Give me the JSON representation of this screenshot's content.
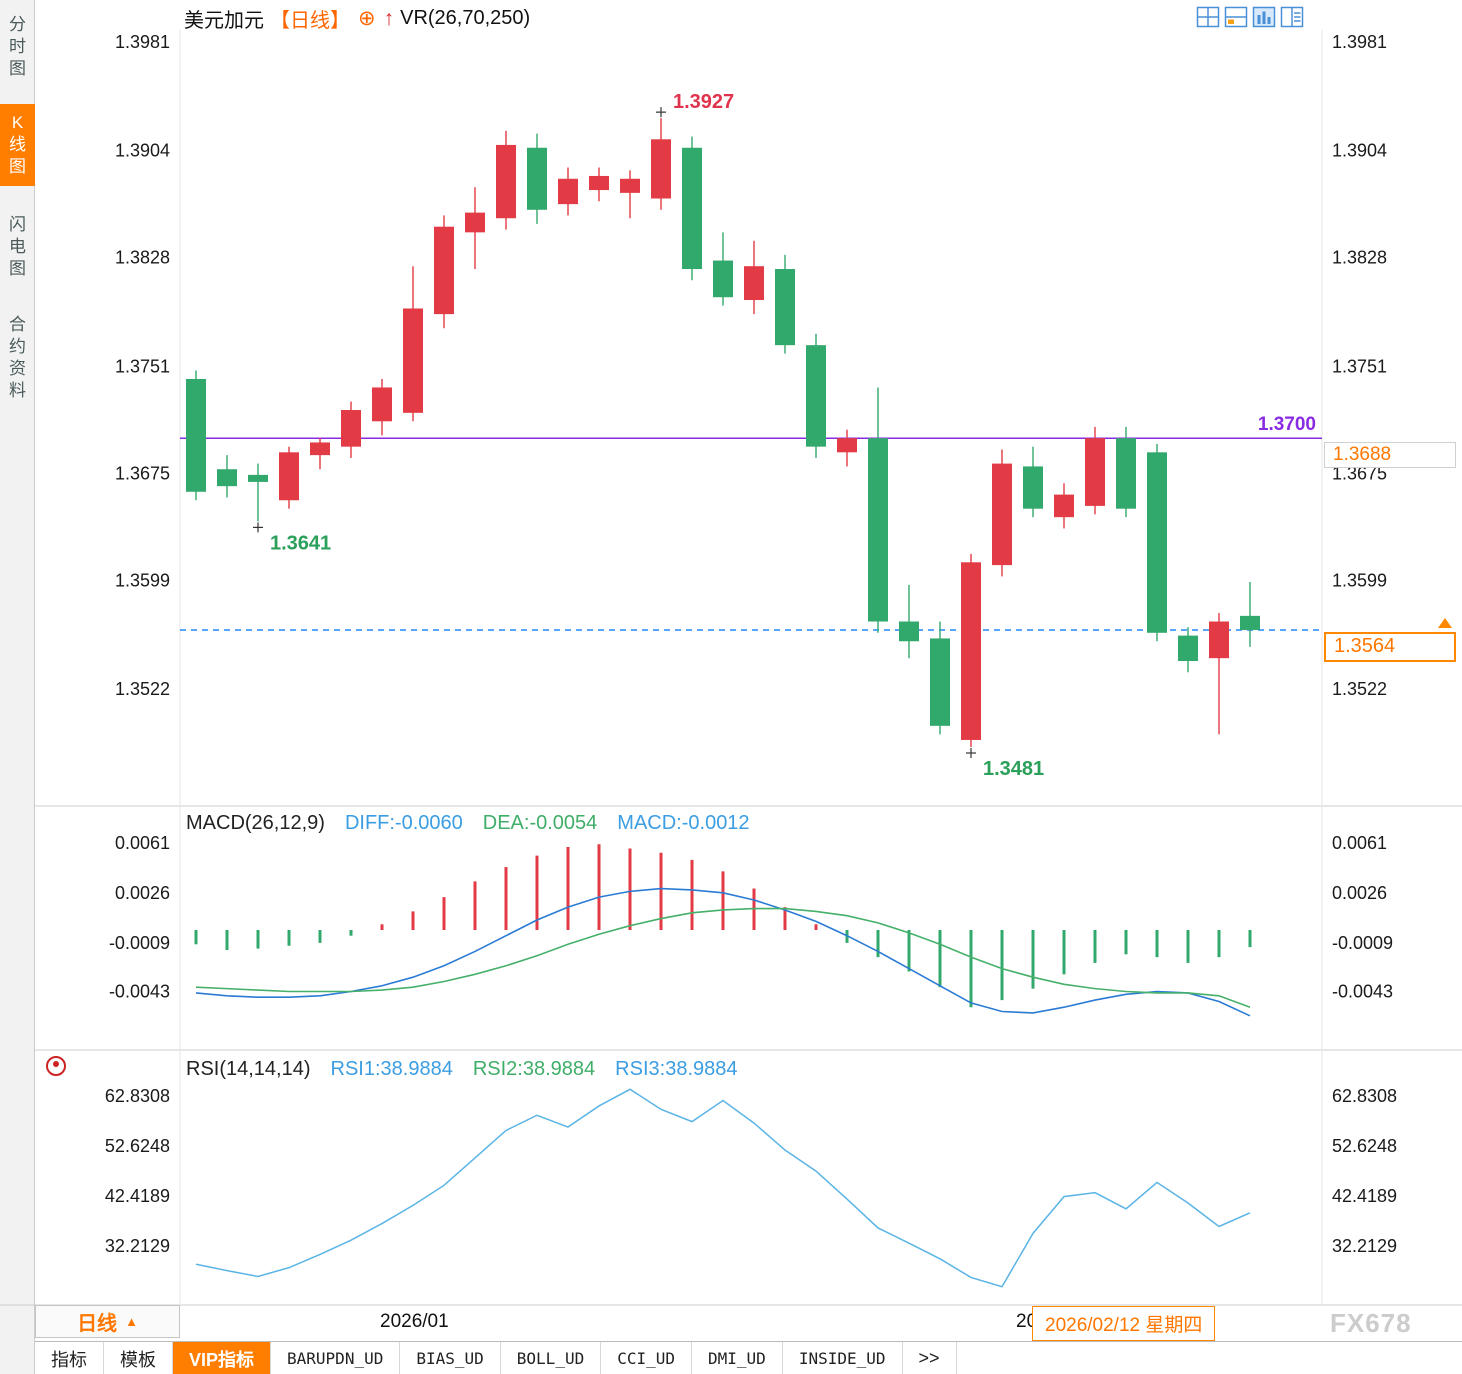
{
  "app": {
    "watermark": "FX678"
  },
  "colors": {
    "up": "#e23b45",
    "down": "#32a96c",
    "level_line": "#8a2be2",
    "current_line": "#2288ff",
    "accent": "#ff7e00",
    "diff_line": "#2b7bd4",
    "dea_line": "#46b06a",
    "rsi_line": "#5ab4e5",
    "tick_text": "#1a1a1a",
    "annotation_high": "#e0334e",
    "annotation_low": "#2aa05a"
  },
  "sidebar": {
    "items": [
      {
        "label": "分时图",
        "active": false
      },
      {
        "label": "K线图",
        "active": true
      },
      {
        "label": "闪电图",
        "active": false
      },
      {
        "label": "合约资料",
        "active": false
      }
    ]
  },
  "header": {
    "symbol": "美元加元",
    "period": "【日线】",
    "plus_icon": "⊕",
    "arrow_icon": "↑",
    "indicator": "VR(26,70,250)"
  },
  "price_tags": {
    "level": "1.3700",
    "right_mid": "1.3688",
    "current": "1.3564"
  },
  "macd_header": {
    "name": "MACD(26,12,9)",
    "diff": "DIFF:-0.0060",
    "dea": "DEA:-0.0054",
    "macd": "MACD:-0.0012"
  },
  "rsi_header": {
    "name": "RSI(14,14,14)",
    "rsi1": "RSI1:38.9884",
    "rsi2": "RSI2:38.9884",
    "rsi3": "RSI3:38.9884"
  },
  "bottom_axis": {
    "period": "日线",
    "arrow": "▲",
    "month": "2026/01",
    "partial": "20",
    "date": "2026/02/12 星期四"
  },
  "bottom_tabs": {
    "items": [
      {
        "label": "指标",
        "active": false
      },
      {
        "label": "模板",
        "active": false
      },
      {
        "label": "VIP指标",
        "active": true
      },
      {
        "label": "BARUPDN_UD",
        "active": false
      },
      {
        "label": "BIAS_UD",
        "active": false
      },
      {
        "label": "BOLL_UD",
        "active": false
      },
      {
        "label": "CCI_UD",
        "active": false
      },
      {
        "label": "DMI_UD",
        "active": false
      },
      {
        "label": "INSIDE_UD",
        "active": false
      },
      {
        "label": ">>",
        "active": false
      }
    ]
  },
  "chart_data": [
    {
      "type": "candlestick",
      "title": "美元加元 日线",
      "y_ticks": [
        "1.3981",
        "1.3904",
        "1.3828",
        "1.3751",
        "1.3675",
        "1.3599",
        "1.3522"
      ],
      "level_line": 1.37,
      "current_price": 1.3564,
      "annotations": [
        {
          "text": "1.3927",
          "index": 15,
          "value": 1.3927,
          "pos": "high"
        },
        {
          "text": "1.3641",
          "index": 2,
          "value": 1.3641,
          "pos": "low"
        },
        {
          "text": "1.3481",
          "index": 25,
          "value": 1.3481,
          "pos": "low"
        }
      ],
      "candles": [
        [
          1.3742,
          1.3748,
          1.3656,
          1.3662
        ],
        [
          1.3678,
          1.3688,
          1.3658,
          1.3666
        ],
        [
          1.3674,
          1.3682,
          1.3641,
          1.3669
        ],
        [
          1.3656,
          1.3694,
          1.365,
          1.369
        ],
        [
          1.3688,
          1.37,
          1.3678,
          1.3697
        ],
        [
          1.3694,
          1.3726,
          1.3686,
          1.372
        ],
        [
          1.3712,
          1.3742,
          1.3702,
          1.3736
        ],
        [
          1.3718,
          1.3822,
          1.3712,
          1.3792
        ],
        [
          1.3788,
          1.3858,
          1.3778,
          1.385
        ],
        [
          1.3846,
          1.3878,
          1.382,
          1.386
        ],
        [
          1.3856,
          1.3918,
          1.3848,
          1.3908
        ],
        [
          1.3906,
          1.3916,
          1.3852,
          1.3862
        ],
        [
          1.3866,
          1.3892,
          1.3858,
          1.3884
        ],
        [
          1.3876,
          1.3892,
          1.3868,
          1.3886
        ],
        [
          1.3874,
          1.389,
          1.3856,
          1.3884
        ],
        [
          1.387,
          1.3927,
          1.3862,
          1.3912
        ],
        [
          1.3906,
          1.3914,
          1.3812,
          1.382
        ],
        [
          1.3826,
          1.3846,
          1.3794,
          1.38
        ],
        [
          1.3798,
          1.384,
          1.3788,
          1.3822
        ],
        [
          1.382,
          1.383,
          1.376,
          1.3766
        ],
        [
          1.3766,
          1.3774,
          1.3686,
          1.3694
        ],
        [
          1.369,
          1.3706,
          1.368,
          1.37
        ],
        [
          1.37,
          1.3736,
          1.3562,
          1.357
        ],
        [
          1.357,
          1.3596,
          1.3544,
          1.3556
        ],
        [
          1.3558,
          1.357,
          1.349,
          1.3496
        ],
        [
          1.3486,
          1.3618,
          1.3481,
          1.3612
        ],
        [
          1.361,
          1.3692,
          1.3602,
          1.3682
        ],
        [
          1.368,
          1.3694,
          1.3644,
          1.365
        ],
        [
          1.3644,
          1.3668,
          1.3636,
          1.366
        ],
        [
          1.3652,
          1.3708,
          1.3646,
          1.37
        ],
        [
          1.37,
          1.3708,
          1.3644,
          1.365
        ],
        [
          1.369,
          1.3696,
          1.3556,
          1.3562
        ],
        [
          1.356,
          1.3566,
          1.3534,
          1.3542
        ],
        [
          1.3544,
          1.3576,
          1.349,
          1.357
        ],
        [
          1.3574,
          1.3598,
          1.3552,
          1.3564
        ]
      ]
    },
    {
      "type": "macd",
      "name": "MACD(26,12,9)",
      "y_ticks": [
        "0.0061",
        "0.0026",
        "-0.0009",
        "-0.0043"
      ],
      "hist": [
        -0.001,
        -0.0014,
        -0.0013,
        -0.0011,
        -0.0009,
        -0.0004,
        0.0004,
        0.0013,
        0.0023,
        0.0034,
        0.0044,
        0.0052,
        0.0058,
        0.006,
        0.0057,
        0.0054,
        0.0049,
        0.0041,
        0.0029,
        0.0016,
        0.0004,
        -0.0009,
        -0.0019,
        -0.0029,
        -0.004,
        -0.0054,
        -0.0049,
        -0.0041,
        -0.0031,
        -0.0023,
        -0.0017,
        -0.0019,
        -0.0023,
        -0.0019,
        -0.0012
      ],
      "diff": [
        -0.0044,
        -0.0046,
        -0.0047,
        -0.0047,
        -0.0046,
        -0.0043,
        -0.0039,
        -0.0033,
        -0.0025,
        -0.0015,
        -0.0004,
        0.0007,
        0.0016,
        0.0023,
        0.0027,
        0.0029,
        0.0028,
        0.0026,
        0.0021,
        0.0014,
        0.0006,
        -0.0004,
        -0.0015,
        -0.0027,
        -0.0039,
        -0.0051,
        -0.0057,
        -0.0058,
        -0.0054,
        -0.0049,
        -0.0045,
        -0.0043,
        -0.0044,
        -0.005,
        -0.006
      ],
      "dea": [
        -0.004,
        -0.0041,
        -0.0042,
        -0.0043,
        -0.0043,
        -0.0043,
        -0.0042,
        -0.004,
        -0.0036,
        -0.0031,
        -0.0025,
        -0.0018,
        -0.001,
        -0.0003,
        0.0003,
        0.0008,
        0.0012,
        0.0014,
        0.0015,
        0.0015,
        0.0013,
        0.001,
        0.0005,
        -0.0002,
        -0.001,
        -0.0019,
        -0.0027,
        -0.0033,
        -0.0038,
        -0.0041,
        -0.0043,
        -0.0044,
        -0.0044,
        -0.0046,
        -0.0054
      ]
    },
    {
      "type": "line",
      "name": "RSI(14,14,14)",
      "y_ticks": [
        "62.8308",
        "52.6248",
        "42.4189",
        "32.2129"
      ],
      "values": [
        28.5,
        27.2,
        26.0,
        27.8,
        30.5,
        33.4,
        36.8,
        40.5,
        44.6,
        50.2,
        55.8,
        58.9,
        56.5,
        60.8,
        64.2,
        60.1,
        57.6,
        61.9,
        57.3,
        51.8,
        47.5,
        41.8,
        35.9,
        32.8,
        29.6,
        25.8,
        23.9,
        34.8,
        42.3,
        43.1,
        39.8,
        45.2,
        41.0,
        36.2,
        38.9884
      ]
    }
  ]
}
